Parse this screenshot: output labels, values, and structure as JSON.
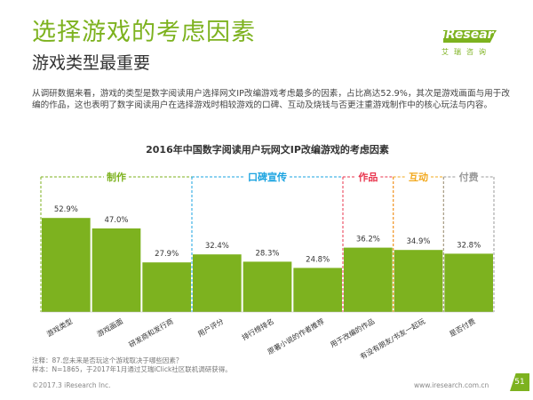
{
  "header": {
    "title": "选择游戏的考虑因素",
    "subtitle": "游戏类型最重要",
    "logo_text": "iResearch",
    "logo_sub": "艾瑞咨询"
  },
  "description": "从调研数据来看，游戏的类型是数字阅读用户选择网文IP改编游戏考虑最多的因素，占比高达52.9%，其次是游戏画面与用于改编的作品，这也表明了数字阅读用户在选择游戏时相较游戏的口碑、互动及烧钱与否更注重游戏制作中的核心玩法与内容。",
  "chart_data": {
    "type": "bar",
    "title": "2016年中国数字阅读用户玩网文IP改编游戏的考虑因素",
    "categories": [
      "游戏类型",
      "游戏画面",
      "研发商和发行商",
      "用户评分",
      "排行榜排名",
      "原著小说的作者推荐",
      "用于改编的作品",
      "有没有朋友/书友一起玩",
      "是否付费"
    ],
    "values": [
      52.9,
      47.0,
      27.9,
      32.4,
      28.3,
      24.8,
      36.2,
      34.9,
      32.8
    ],
    "value_labels": [
      "52.9%",
      "47.0%",
      "27.9%",
      "32.4%",
      "28.3%",
      "24.8%",
      "36.2%",
      "34.9%",
      "32.8%"
    ],
    "ylim": [
      0,
      80
    ],
    "bar_color": "#7db21f",
    "groups": [
      {
        "label": "制作",
        "start": 0,
        "end": 2,
        "color": "#7db21f"
      },
      {
        "label": "口碑宣传",
        "start": 3,
        "end": 5,
        "color": "#1aa3e0"
      },
      {
        "label": "作品",
        "start": 6,
        "end": 6,
        "color": "#e8364e"
      },
      {
        "label": "互动",
        "start": 7,
        "end": 7,
        "color": "#f2a81d"
      },
      {
        "label": "付费",
        "start": 8,
        "end": 8,
        "color": "#999999"
      }
    ]
  },
  "notes": {
    "line1": "注释：87.您未来是否玩这个游戏取决于哪些因素？",
    "line2": "样本：N=1865，于2017年1月通过艾瑞iClick社区联机调研获得。"
  },
  "footer": {
    "copyright": "©2017.3 iResearch Inc.",
    "url": "www.iresearch.com.cn",
    "page": "51"
  }
}
